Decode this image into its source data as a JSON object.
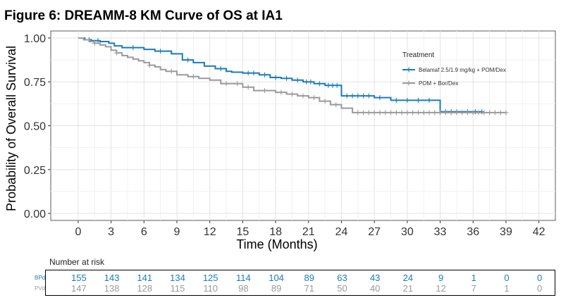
{
  "figure_title": "Figure 6: DREAMM-8 KM Curve of OS at IA1",
  "chart_data": {
    "type": "line",
    "step": true,
    "xlabel": "Time (Months)",
    "ylabel": "Probability of Overall Survival",
    "xlim": [
      -2.5,
      43.5
    ],
    "ylim": [
      -0.04,
      1.04
    ],
    "x_ticks": [
      0,
      3,
      6,
      9,
      12,
      15,
      18,
      21,
      24,
      27,
      30,
      33,
      36,
      39,
      42
    ],
    "x_tick_labels": [
      "0",
      "3",
      "6",
      "9",
      "12",
      "15",
      "18",
      "21",
      "24",
      "27",
      "30",
      "33",
      "36",
      "39",
      "42"
    ],
    "y_ticks": [
      0,
      0.25,
      0.5,
      0.75,
      1.0
    ],
    "y_tick_labels": [
      "0.00",
      "0.25",
      "0.50",
      "0.75",
      "1.00"
    ],
    "grid": true,
    "legend_title": "Treatment",
    "legend_position": "top-right",
    "series": [
      {
        "name": "Belamaf 2.5/1.9 mg/kg + POM/Dex",
        "color": "#1a7bbd",
        "x": [
          0,
          0.6,
          1.2,
          2.0,
          2.8,
          3.3,
          4.0,
          6.0,
          7.0,
          8.5,
          9.5,
          10.5,
          11.5,
          12.5,
          13.5,
          14.0,
          15.0,
          16.5,
          17.5,
          18.5,
          19.5,
          20.5,
          21.5,
          22.5,
          24.0,
          27.0,
          28.5,
          33.0,
          35.0,
          36.0
        ],
        "y": [
          1.0,
          0.99,
          0.985,
          0.98,
          0.97,
          0.955,
          0.945,
          0.935,
          0.925,
          0.91,
          0.875,
          0.86,
          0.84,
          0.825,
          0.81,
          0.805,
          0.8,
          0.79,
          0.775,
          0.77,
          0.76,
          0.75,
          0.74,
          0.73,
          0.67,
          0.66,
          0.645,
          0.58,
          0.58,
          0.58
        ],
        "censor_x": [
          1.0,
          1.8,
          5.0,
          7.5,
          10.0,
          13.0,
          15.5,
          16.0,
          17.0,
          18.0,
          19.0,
          20.0,
          20.8,
          21.2,
          22.0,
          22.8,
          23.2,
          23.6,
          24.5,
          25.0,
          25.5,
          26.0,
          26.5,
          27.5,
          29.0,
          30.0,
          31.0,
          32.0,
          33.5,
          34.0,
          34.5,
          35.5,
          36.2,
          36.8
        ]
      },
      {
        "name": "POM + Bor/Dex",
        "color": "#9a9a9a",
        "x": [
          0,
          0.5,
          1.0,
          1.5,
          2.0,
          2.5,
          3.0,
          3.5,
          4.0,
          4.5,
          5.0,
          5.5,
          6.0,
          6.5,
          7.0,
          7.5,
          8.0,
          9.0,
          10.0,
          11.0,
          12.0,
          13.0,
          15.0,
          16.0,
          18.0,
          19.0,
          20.0,
          21.0,
          22.0,
          23.0,
          24.0,
          25.0
        ],
        "y": [
          1.0,
          0.99,
          0.98,
          0.97,
          0.96,
          0.95,
          0.93,
          0.915,
          0.9,
          0.89,
          0.88,
          0.87,
          0.86,
          0.845,
          0.835,
          0.82,
          0.81,
          0.79,
          0.78,
          0.77,
          0.76,
          0.74,
          0.72,
          0.7,
          0.69,
          0.68,
          0.67,
          0.66,
          0.64,
          0.62,
          0.6,
          0.575
        ],
        "censor_x": [
          1.5,
          3.5,
          6.5,
          8.5,
          10.5,
          13.5,
          14.5,
          15.5,
          17.0,
          18.5,
          19.5,
          20.5,
          21.5,
          22.5,
          23.5,
          25.5,
          26.0,
          26.5,
          27.0,
          27.5,
          28.0,
          28.5,
          29.0,
          29.5,
          30.0,
          30.5,
          31.0,
          31.5,
          32.0,
          32.5,
          33.0,
          33.5,
          34.0,
          34.5,
          35.0,
          35.5,
          36.0,
          36.5,
          37.0,
          37.5,
          38.0,
          38.5,
          39.0
        ]
      }
    ]
  },
  "risk_table": {
    "title": "Number at risk",
    "times": [
      0,
      3,
      6,
      9,
      12,
      15,
      18,
      21,
      24,
      27,
      30,
      33,
      36,
      39,
      42
    ],
    "rows": [
      {
        "arm": "BPd",
        "color": "#1a7bbd",
        "values": [
          "155",
          "143",
          "141",
          "134",
          "125",
          "114",
          "104",
          "89",
          "63",
          "43",
          "24",
          "9",
          "1",
          "0",
          "0"
        ]
      },
      {
        "arm": "PVd",
        "color": "#9a9a9a",
        "values": [
          "147",
          "138",
          "128",
          "115",
          "110",
          "98",
          "89",
          "71",
          "50",
          "40",
          "21",
          "12",
          "7",
          "1",
          "0"
        ]
      }
    ]
  }
}
